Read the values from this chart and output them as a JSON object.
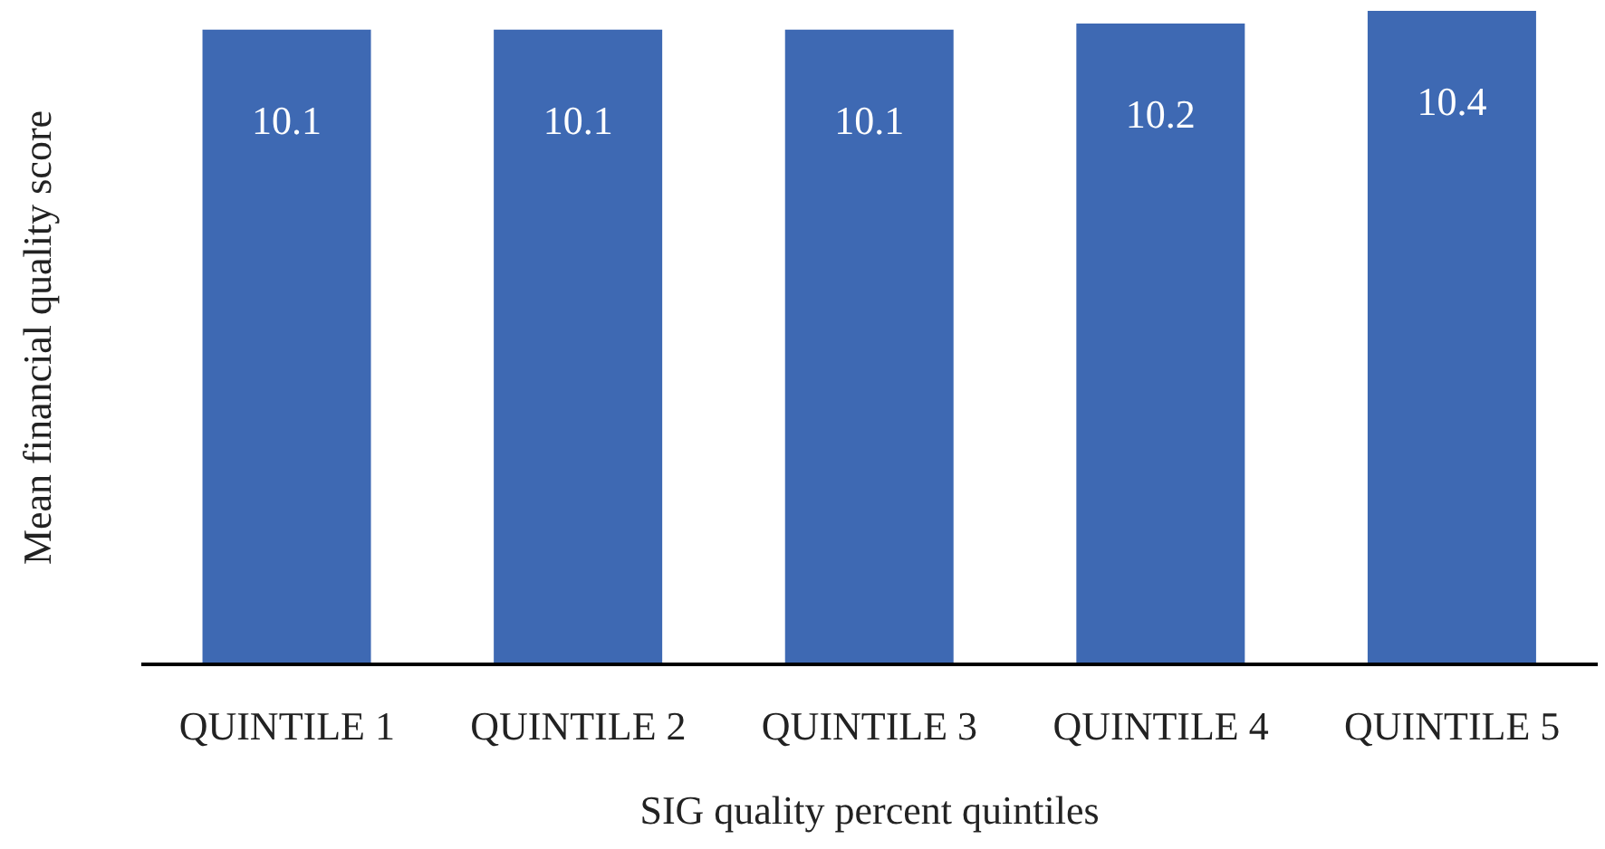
{
  "chart_data": {
    "type": "bar",
    "xlabel": "SIG quality percent quintiles",
    "ylabel": "Mean financial quality score",
    "categories": [
      "QUINTILE 1",
      "QUINTILE 2",
      "QUINTILE 3",
      "QUINTILE 4",
      "QUINTILE 5"
    ],
    "values": [
      10.1,
      10.1,
      10.1,
      10.2,
      10.4
    ],
    "color": "#3e69b3",
    "data_labels": true,
    "grid": false,
    "legend": false
  }
}
